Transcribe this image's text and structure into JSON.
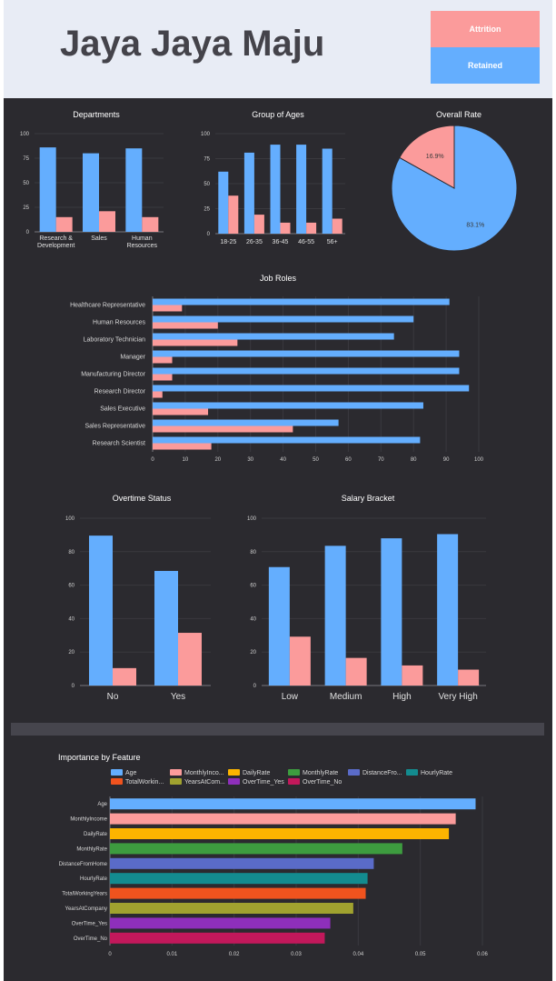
{
  "header": {
    "title": "Jaya Jaya Maju"
  },
  "legend": {
    "attrition_label": "Attrition",
    "retained_label": "Retained"
  },
  "colors": {
    "retained": "#64aefe",
    "attrition": "#fb9b9b",
    "background": "#2b2a2f"
  },
  "chart_data": [
    {
      "id": "departments",
      "type": "bar",
      "title": "Departments",
      "categories": [
        "Research & Development",
        "Sales",
        "Human Resources"
      ],
      "series": [
        {
          "name": "Retained",
          "values": [
            86,
            80,
            85
          ]
        },
        {
          "name": "Attrition",
          "values": [
            15,
            21,
            15
          ]
        }
      ],
      "ylim": [
        0,
        100
      ],
      "yticks": [
        0,
        25,
        50,
        75,
        100
      ]
    },
    {
      "id": "ages",
      "type": "bar",
      "title": "Group of Ages",
      "categories": [
        "18-25",
        "26-35",
        "36-45",
        "46-55",
        "56+"
      ],
      "series": [
        {
          "name": "Retained",
          "values": [
            62,
            81,
            89,
            89,
            85
          ]
        },
        {
          "name": "Attrition",
          "values": [
            38,
            19,
            11,
            11,
            15
          ]
        }
      ],
      "ylim": [
        0,
        100
      ],
      "yticks": [
        0,
        25,
        50,
        75,
        100
      ]
    },
    {
      "id": "overall",
      "type": "pie",
      "title": "Overall Rate",
      "slices": [
        {
          "name": "Attrition",
          "value": 16.9,
          "label": "16.9%"
        },
        {
          "name": "Retained",
          "value": 83.1,
          "label": "83.1%"
        }
      ]
    },
    {
      "id": "job_roles",
      "type": "bar",
      "orientation": "horizontal",
      "title": "Job Roles",
      "categories": [
        "Healthcare Representative",
        "Human Resources",
        "Laboratory Technician",
        "Manager",
        "Manufacturing Director",
        "Research Director",
        "Sales Executive",
        "Sales Representative",
        "Research Scientist"
      ],
      "series": [
        {
          "name": "Retained",
          "values": [
            91,
            80,
            74,
            94,
            94,
            97,
            83,
            57,
            82
          ]
        },
        {
          "name": "Attrition",
          "values": [
            9,
            20,
            26,
            6,
            6,
            3,
            17,
            43,
            18
          ]
        }
      ],
      "xlim": [
        0,
        100
      ],
      "xticks": [
        0,
        10,
        20,
        30,
        40,
        50,
        60,
        70,
        80,
        90,
        100
      ]
    },
    {
      "id": "overtime",
      "type": "bar",
      "title": "Overtime Status",
      "categories": [
        "No",
        "Yes"
      ],
      "series": [
        {
          "name": "Retained",
          "values": [
            89.6,
            68.5
          ]
        },
        {
          "name": "Attrition",
          "values": [
            10.4,
            31.5
          ]
        }
      ],
      "ylim": [
        0,
        100
      ],
      "yticks": [
        0,
        20,
        40,
        60,
        80,
        100
      ]
    },
    {
      "id": "salary",
      "type": "bar",
      "title": "Salary Bracket",
      "categories": [
        "Low",
        "Medium",
        "High",
        "Very High"
      ],
      "series": [
        {
          "name": "Retained",
          "values": [
            70.8,
            83.5,
            88,
            90.5
          ]
        },
        {
          "name": "Attrition",
          "values": [
            29.2,
            16.5,
            12,
            9.5
          ]
        }
      ],
      "ylim": [
        0,
        100
      ],
      "yticks": [
        0,
        20,
        40,
        60,
        80,
        100
      ]
    },
    {
      "id": "features",
      "type": "bar",
      "orientation": "horizontal",
      "title": "Importance by Feature",
      "legend_entries": [
        "Age",
        "MonthlyInco...",
        "DailyRate",
        "MonthlyRate",
        "DistanceFro...",
        "HourlyRate",
        "TotalWorkin...",
        "YearsAtCom...",
        "OverTime_Yes",
        "OverTime_No"
      ],
      "categories": [
        "Age",
        "MonthlyIncome",
        "DailyRate",
        "MonthlyRate",
        "DistanceFromHome",
        "HourlyRate",
        "TotalWorkingYears",
        "YearsAtCompany",
        "OverTime_Yes",
        "OverTime_No"
      ],
      "values": [
        0.0589,
        0.0557,
        0.0546,
        0.0471,
        0.0425,
        0.0415,
        0.0412,
        0.0392,
        0.0355,
        0.0346
      ],
      "colors": [
        "#64aefe",
        "#fb9b9b",
        "#fcb400",
        "#3d9c3f",
        "#5a6bc8",
        "#138b8f",
        "#f0531e",
        "#a0a22f",
        "#8e2fbb",
        "#c2185b"
      ],
      "xlim": [
        0,
        0.06
      ],
      "xticks": [
        0,
        0.01,
        0.02,
        0.03,
        0.04,
        0.05,
        0.06
      ]
    }
  ]
}
